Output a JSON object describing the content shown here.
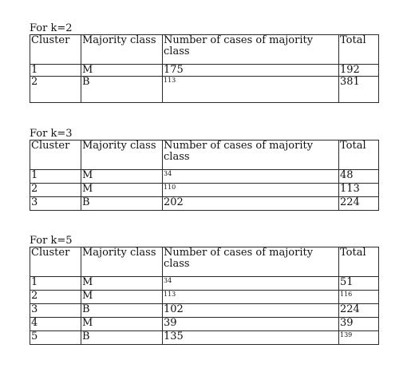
{
  "sections": [
    {
      "heading": "For k=2",
      "headers": {
        "cluster": "Cluster",
        "majority": "Majority class",
        "cases": "Number of cases of majority class",
        "total": "Total"
      },
      "rows": [
        {
          "cluster": "1",
          "majority": "M",
          "cases": "175",
          "total": "192"
        },
        {
          "cluster": "2",
          "majority": "B",
          "cases": "113",
          "total": "381"
        }
      ]
    },
    {
      "heading": "For k=3",
      "headers": {
        "cluster": "Cluster",
        "majority": "Majority class",
        "cases": "Number of cases of majority class",
        "total": "Total"
      },
      "rows": [
        {
          "cluster": "1",
          "majority": "M",
          "cases": "34",
          "total": "48"
        },
        {
          "cluster": "2",
          "majority": "M",
          "cases": "110",
          "total": "113"
        },
        {
          "cluster": "3",
          "majority": "B",
          "cases": "202",
          "total": "224"
        }
      ]
    },
    {
      "heading": "For k=5",
      "headers": {
        "cluster": "Cluster",
        "majority": "Majority class",
        "cases": "Number of cases of majority class",
        "total": "Total"
      },
      "rows": [
        {
          "cluster": "1",
          "majority": "M",
          "cases": "34",
          "total": "51"
        },
        {
          "cluster": "2",
          "majority": "M",
          "cases": "113",
          "total": "116"
        },
        {
          "cluster": "3",
          "majority": "B",
          "cases": "102",
          "total": "224"
        },
        {
          "cluster": "4",
          "majority": "M",
          "cases": "39",
          "total": "39"
        },
        {
          "cluster": "5",
          "majority": "B",
          "cases": "135",
          "total": "139"
        }
      ]
    }
  ]
}
